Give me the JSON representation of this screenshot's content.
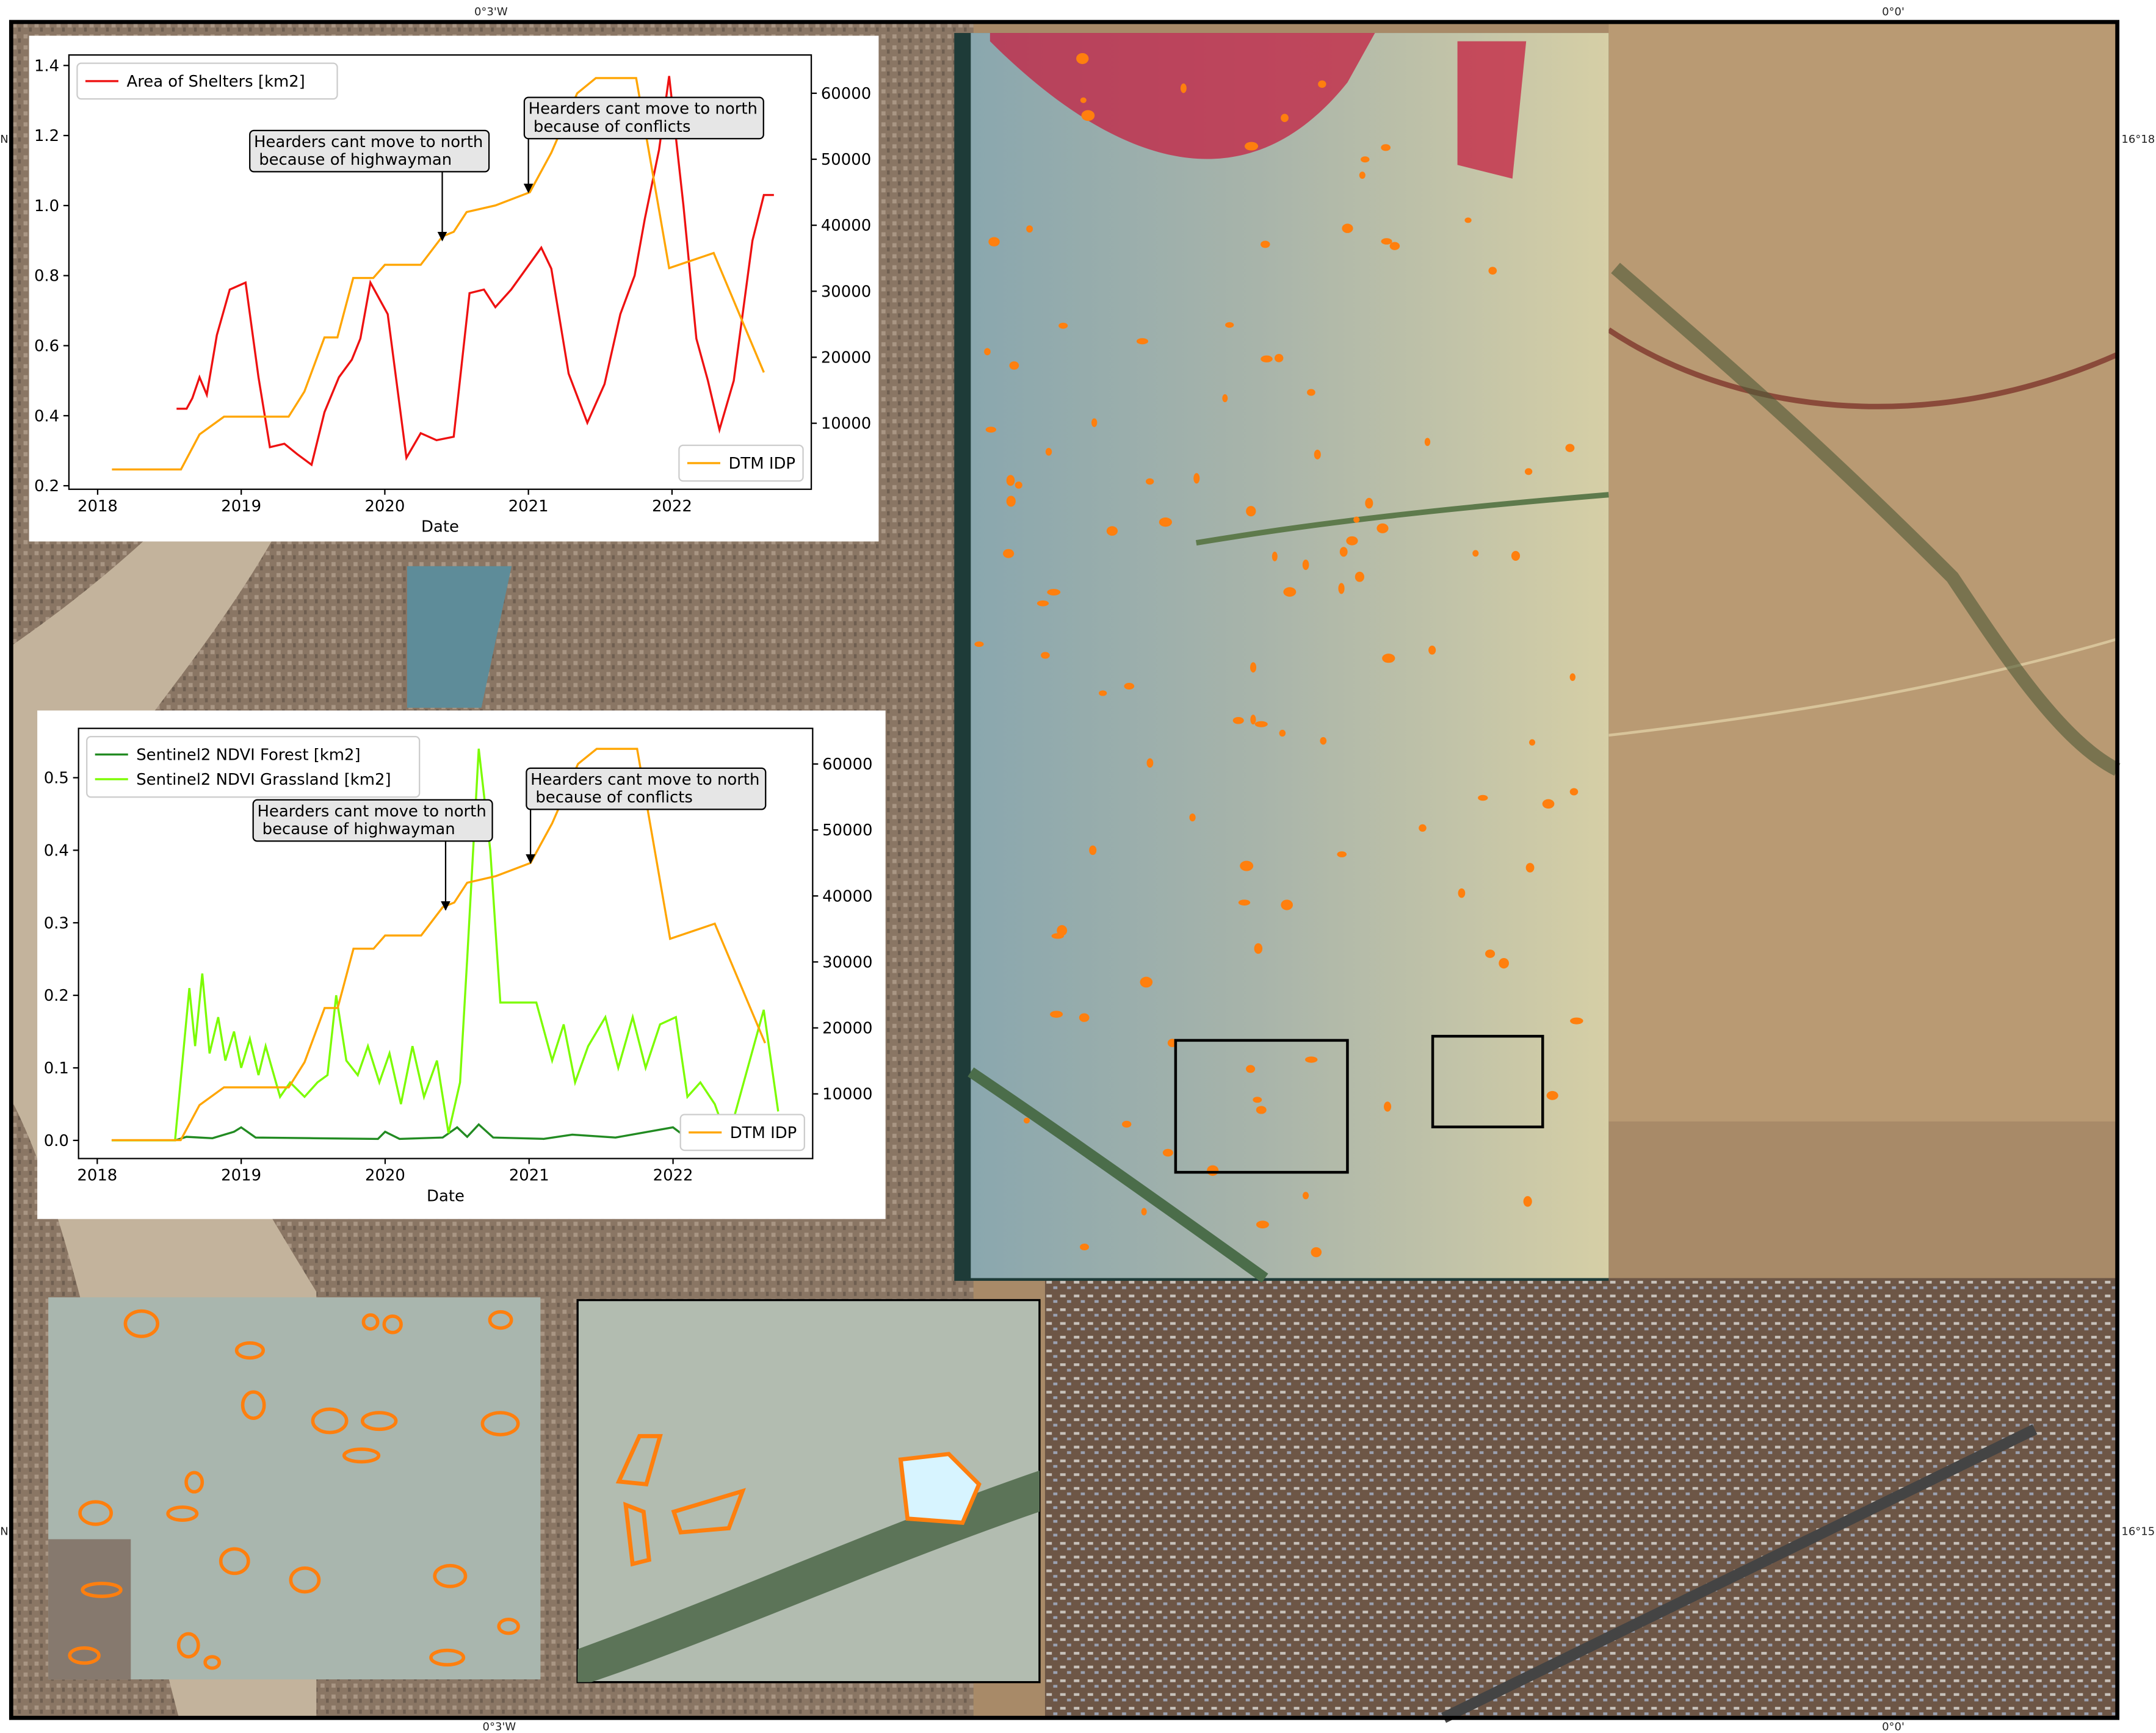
{
  "map_labels": [
    "0°3'W",
    "0°0'",
    "16°18'",
    "16°15'",
    "N",
    "N",
    "0°3'W",
    "0°0'"
  ],
  "chart_data": [
    {
      "type": "line",
      "x_label": "Date",
      "xlim": [
        2017.8,
        2022.97
      ],
      "xticks": [
        2018,
        2019,
        2020,
        2021,
        2022
      ],
      "ylim": [
        0.19,
        1.43
      ],
      "yticks": [
        0.2,
        0.4,
        0.6,
        0.8,
        {
          "value": 1,
          "label": "1.0"
        },
        1.2,
        1.4
      ],
      "y2lim": [
        0,
        65800
      ],
      "y2ticks": [
        10000,
        20000,
        30000,
        40000,
        50000,
        60000
      ],
      "legend_loc": {
        "y": "upper left",
        "y2": "lower right"
      },
      "series": [
        {
          "name": "Area of Shelters [km2]",
          "color": "#ee1111",
          "axis": "y",
          "x": [
            2018.55,
            2018.62,
            2018.66,
            2018.71,
            2018.76,
            2018.83,
            2018.92,
            2019.03,
            2019.12,
            2019.2,
            2019.3,
            2019.39,
            2019.49,
            2019.58,
            2019.68,
            2019.77,
            2019.83,
            2019.9,
            2020.02,
            2020.15,
            2020.25,
            2020.36,
            2020.48,
            2020.59,
            2020.69,
            2020.77,
            2020.88,
            2021.09,
            2021.16,
            2021.28,
            2021.41,
            2021.53,
            2021.64,
            2021.74,
            2021.81,
            2021.91,
            2021.98,
            2022.08,
            2022.17,
            2022.25,
            2022.33,
            2022.43,
            2022.56,
            2022.64,
            2022.71
          ],
          "values": [
            0.42,
            0.42,
            0.45,
            0.51,
            0.46,
            0.63,
            0.76,
            0.78,
            0.51,
            0.31,
            0.32,
            0.29,
            0.26,
            0.41,
            0.51,
            0.56,
            0.62,
            0.78,
            0.69,
            0.28,
            0.35,
            0.33,
            0.34,
            0.75,
            0.76,
            0.71,
            0.76,
            0.88,
            0.82,
            0.52,
            0.38,
            0.49,
            0.69,
            0.8,
            0.96,
            1.16,
            1.37,
            1.0,
            0.62,
            0.5,
            0.36,
            0.5,
            0.9,
            1.03,
            1.03
          ]
        },
        {
          "name": "DTM IDP",
          "color": "#ffa500",
          "axis": "y2",
          "x": [
            2018.1,
            2018.58,
            2018.71,
            2018.88,
            2019.33,
            2019.44,
            2019.58,
            2019.67,
            2019.78,
            2019.92,
            2020.0,
            2020.25,
            2020.4,
            2020.48,
            2020.57,
            2020.77,
            2021.01,
            2021.16,
            2021.34,
            2021.47,
            2021.75,
            2021.98,
            2022.29,
            2022.64
          ],
          "values": [
            3000,
            3000,
            8300,
            11000,
            11000,
            14800,
            23000,
            23000,
            32000,
            32000,
            34000,
            34000,
            38300,
            39000,
            42000,
            43000,
            45000,
            51000,
            60000,
            62300,
            62300,
            33500,
            35800,
            17700
          ]
        }
      ],
      "annotations": [
        {
          "text": [
            "Hearders cant move to north",
            " because of highwayman"
          ],
          "x": 2020.4,
          "y": 37700,
          "axis": "y2"
        },
        {
          "text": [
            "Hearders cant move to north",
            " because of conflicts"
          ],
          "x": 2021.0,
          "y": 45000,
          "axis": "y2"
        }
      ]
    },
    {
      "type": "line",
      "x_label": "Date",
      "xlim": [
        2017.87,
        2022.97
      ],
      "xticks": [
        2018,
        2019,
        2020,
        2021,
        2022
      ],
      "ylim": [
        -0.025,
        0.568
      ],
      "yticks": [
        {
          "value": 0,
          "label": "0.0"
        },
        0.1,
        0.2,
        0.3,
        0.4,
        0.5
      ],
      "y2lim": [
        200,
        65400
      ],
      "y2ticks": [
        10000,
        20000,
        30000,
        40000,
        50000,
        60000
      ],
      "legend_loc": {
        "y": "upper left",
        "y2": "lower right"
      },
      "series": [
        {
          "name": "Sentinel2 NDVI Forest [km2]",
          "color": "#228b22",
          "axis": "y",
          "x": [
            2018.1,
            2018.54,
            2018.62,
            2018.8,
            2018.95,
            2019.0,
            2019.1,
            2019.5,
            2019.95,
            2020.0,
            2020.1,
            2020.4,
            2020.5,
            2020.57,
            2020.65,
            2020.75,
            2021.1,
            2021.3,
            2021.6,
            2022.0,
            2022.1,
            2022.4
          ],
          "values": [
            0,
            0,
            0.005,
            0.003,
            0.012,
            0.018,
            0.004,
            0.003,
            0.002,
            0.012,
            0.002,
            0.004,
            0.018,
            0.005,
            0.022,
            0.004,
            0.002,
            0.008,
            0.004,
            0.018,
            0.003,
            0.006
          ]
        },
        {
          "name": "Sentinel2 NDVI Grassland [km2]",
          "color": "#7cfc00",
          "axis": "y",
          "x": [
            2018.1,
            2018.54,
            2018.64,
            2018.68,
            2018.73,
            2018.78,
            2018.84,
            2018.89,
            2018.95,
            2019.0,
            2019.06,
            2019.12,
            2019.17,
            2019.27,
            2019.34,
            2019.44,
            2019.53,
            2019.6,
            2019.66,
            2019.73,
            2019.81,
            2019.88,
            2019.96,
            2020.03,
            2020.11,
            2020.19,
            2020.27,
            2020.36,
            2020.44,
            2020.52,
            2020.57,
            2020.65,
            2020.73,
            2020.8,
            2021.05,
            2021.16,
            2021.24,
            2021.32,
            2021.41,
            2021.53,
            2021.62,
            2021.72,
            2021.81,
            2021.91,
            2022.02,
            2022.1,
            2022.19,
            2022.29,
            2022.38,
            2022.63,
            2022.73
          ],
          "values": [
            0,
            0,
            0.21,
            0.13,
            0.23,
            0.12,
            0.17,
            0.11,
            0.15,
            0.1,
            0.14,
            0.09,
            0.13,
            0.06,
            0.08,
            0.06,
            0.08,
            0.09,
            0.2,
            0.11,
            0.09,
            0.13,
            0.08,
            0.12,
            0.05,
            0.13,
            0.06,
            0.11,
            0.01,
            0.08,
            0.25,
            0.54,
            0.4,
            0.19,
            0.19,
            0.11,
            0.16,
            0.08,
            0.13,
            0.17,
            0.1,
            0.17,
            0.1,
            0.16,
            0.17,
            0.06,
            0.08,
            0.05,
            0,
            0.18,
            0.04
          ]
        },
        {
          "name": "DTM IDP",
          "color": "#ffa500",
          "axis": "y2",
          "x": [
            2018.1,
            2018.58,
            2018.71,
            2018.88,
            2019.33,
            2019.44,
            2019.58,
            2019.67,
            2019.78,
            2019.92,
            2020.0,
            2020.25,
            2020.4,
            2020.48,
            2020.57,
            2020.77,
            2021.01,
            2021.16,
            2021.34,
            2021.47,
            2021.75,
            2021.98,
            2022.29,
            2022.64
          ],
          "values": [
            3000,
            3000,
            8300,
            11000,
            11000,
            14800,
            23000,
            23000,
            32000,
            32000,
            34000,
            34000,
            38300,
            39000,
            42000,
            43000,
            45000,
            51000,
            60000,
            62300,
            62300,
            33500,
            35800,
            17700
          ]
        }
      ],
      "annotations": [
        {
          "text": [
            "Hearders cant move to north",
            " because of highwayman"
          ],
          "x": 2020.42,
          "y": 37900,
          "axis": "y2"
        },
        {
          "text": [
            "Hearders cant move to north",
            " because of conflicts"
          ],
          "x": 2021.01,
          "y": 45000,
          "axis": "y2"
        }
      ]
    }
  ]
}
